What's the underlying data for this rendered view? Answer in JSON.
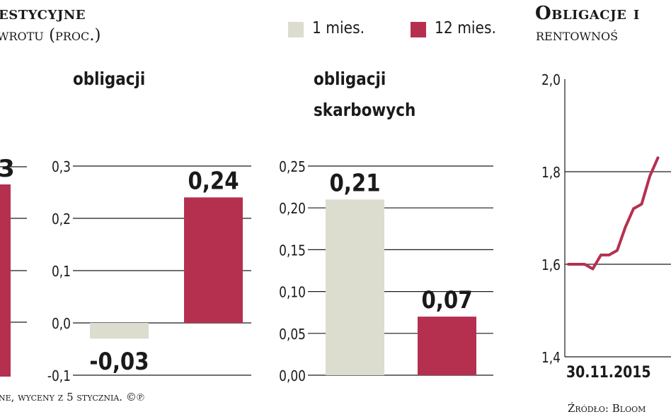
{
  "header": {
    "left_title": "estycyjne",
    "left_subtitle": "wrotu (proc.)",
    "right_title": "Obligacje i",
    "right_subtitle": "rentownoś"
  },
  "legend": [
    {
      "label": "1 mies.",
      "color": "#dcdccf"
    },
    {
      "label": "12 mies.",
      "color": "#b5304f"
    }
  ],
  "colors": {
    "one_month": "#dcdccf",
    "twelve_month": "#b5304f",
    "line": "#b5304f",
    "grid": "#1a1a1a"
  },
  "footer": {
    "left_note": "ne, wyceny z 5 stycznia. ©℗",
    "source": "Źródło: Bloom"
  },
  "chart_data": [
    {
      "type": "bar",
      "panel": "partial-left",
      "series": [
        {
          "name": "12 mies.",
          "values": [
            null
          ]
        }
      ],
      "value_label_fragment": "3"
    },
    {
      "type": "bar",
      "title": "obligacji",
      "categories": [
        "1 mies.",
        "12 mies."
      ],
      "values": [
        -0.03,
        0.24
      ],
      "labels": [
        "-0,03",
        "0,24"
      ],
      "ylim": [
        -0.1,
        0.3
      ],
      "yticks": [
        "0,3",
        "0,2",
        "0,1",
        "0,0",
        "-0,1"
      ]
    },
    {
      "type": "bar",
      "title_lines": [
        "obligacji",
        "skarbowych"
      ],
      "categories": [
        "1 mies.",
        "12 mies."
      ],
      "values": [
        0.21,
        0.07
      ],
      "labels": [
        "0,21",
        "0,07"
      ],
      "ylim": [
        0.0,
        0.25
      ],
      "yticks": [
        "0,25",
        "0,20",
        "0,15",
        "0,10",
        "0,05",
        "0,00"
      ]
    },
    {
      "type": "line",
      "ylim": [
        1.4,
        2.0
      ],
      "yticks": [
        "2,0",
        "1,8",
        "1,6",
        "1,4"
      ],
      "x_tick_labels": [
        "30.11.2015"
      ],
      "y": [
        1.6,
        1.6,
        1.6,
        1.59,
        1.62,
        1.62,
        1.63,
        1.68,
        1.72,
        1.73,
        1.79,
        1.83
      ]
    }
  ]
}
